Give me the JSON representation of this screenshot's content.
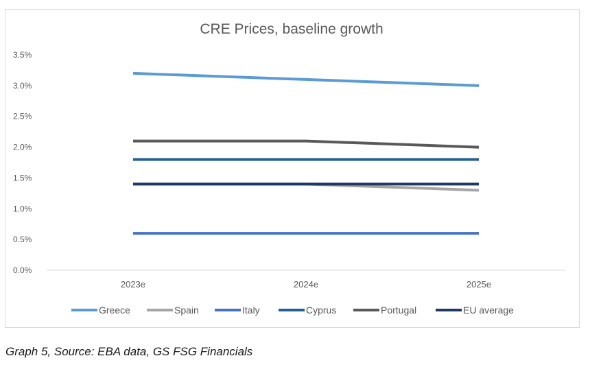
{
  "chart_data": {
    "type": "line",
    "title": "CRE Prices, baseline growth",
    "xlabel": "",
    "ylabel": "",
    "categories": [
      "2023e",
      "2024e",
      "2025e"
    ],
    "ylim": [
      0,
      3.5
    ],
    "y_ticks": [
      "0.0%",
      "0.5%",
      "1.0%",
      "1.5%",
      "2.0%",
      "2.5%",
      "3.0%",
      "3.5%"
    ],
    "y_tick_values": [
      0,
      0.5,
      1.0,
      1.5,
      2.0,
      2.5,
      3.0,
      3.5
    ],
    "grid": false,
    "legend_position": "bottom",
    "series": [
      {
        "name": "Greece",
        "values": [
          3.2,
          3.1,
          3.0
        ],
        "color": "#5b9bd5"
      },
      {
        "name": "Spain",
        "values": [
          1.4,
          1.4,
          1.3
        ],
        "color": "#a5a5a5"
      },
      {
        "name": "Italy",
        "values": [
          0.6,
          0.6,
          0.6
        ],
        "color": "#4472c4"
      },
      {
        "name": "Cyprus",
        "values": [
          1.8,
          1.8,
          1.8
        ],
        "color": "#255e91"
      },
      {
        "name": "Portugal",
        "values": [
          2.1,
          2.1,
          2.0
        ],
        "color": "#595959"
      },
      {
        "name": "EU average",
        "values": [
          1.4,
          1.4,
          1.4
        ],
        "color": "#203864"
      }
    ]
  },
  "caption": "Graph 5, Source: EBA data, GS FSG Financials"
}
